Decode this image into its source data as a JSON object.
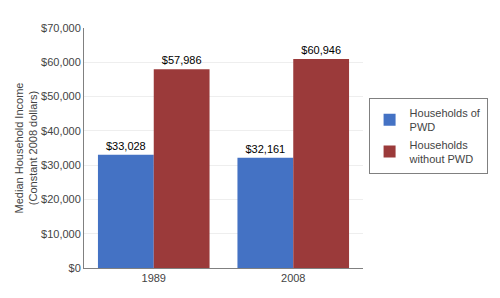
{
  "chart_data": {
    "type": "bar",
    "categories": [
      "1989",
      "2008"
    ],
    "series": [
      {
        "name": "Households of\nPWD",
        "color": "#4472C4",
        "values": [
          33028,
          32161
        ],
        "value_labels": [
          "$33,028",
          "$32,161"
        ]
      },
      {
        "name": "Households\nwithout PWD",
        "color": "#9B3A3A",
        "values": [
          57986,
          60946
        ],
        "value_labels": [
          "$57,986",
          "$60,946"
        ]
      }
    ],
    "ylabel": "Median Household Income\n(Constant 2008 dollars)",
    "ylim": [
      0,
      70000
    ],
    "yticks": [
      {
        "value": 0,
        "label": "$0"
      },
      {
        "value": 10000,
        "label": "$10,000"
      },
      {
        "value": 20000,
        "label": "$20,000"
      },
      {
        "value": 30000,
        "label": "$30,000"
      },
      {
        "value": 40000,
        "label": "$40,000"
      },
      {
        "value": 50000,
        "label": "$50,000"
      },
      {
        "value": 60000,
        "label": "$60,000"
      },
      {
        "value": 70000,
        "label": "$70,000"
      }
    ],
    "grid": true,
    "data_labels": true,
    "legend": "right"
  }
}
